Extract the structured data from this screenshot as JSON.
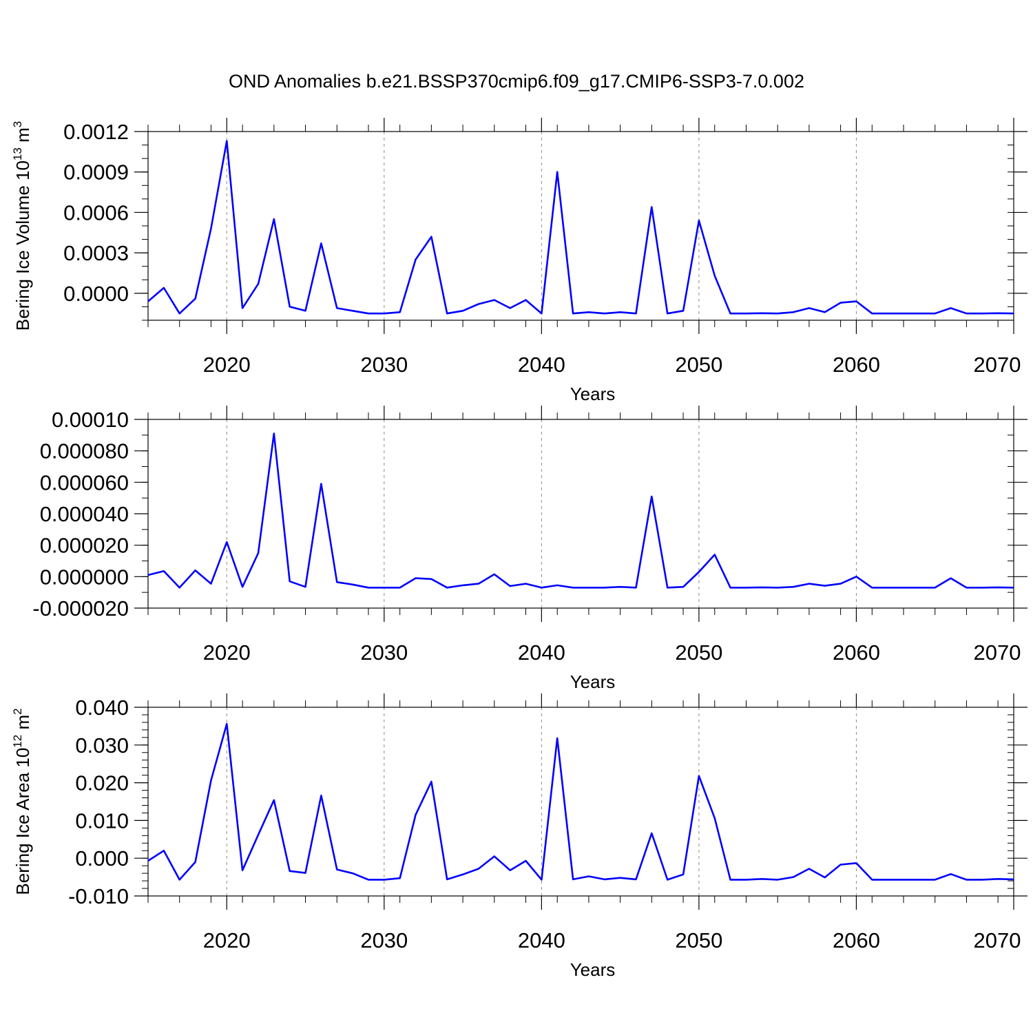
{
  "title": "OND Anomalies b.e21.BSSP370cmip6.f09_g17.CMIP6-SSP3-7.0.002",
  "colors": {
    "line": "#0000ff",
    "axis": "#000000",
    "grid": "#888888"
  },
  "chart_data": [
    {
      "type": "line",
      "xlabel": "Years",
      "ylabel": "Bering Ice Volume 10",
      "ylabel_sup": "13",
      "ylabel_unit": " m",
      "ylabel_unit_sup": "3",
      "xlim": [
        2015,
        2070
      ],
      "ylim": [
        -0.0002,
        0.0012
      ],
      "xticks": [
        2020,
        2030,
        2040,
        2050,
        2060,
        2070
      ],
      "xtick_labels": [
        "2020",
        "2030",
        "2040",
        "2050",
        "2060",
        "2070"
      ],
      "yticks": [
        0,
        0.0003,
        0.0006,
        0.0009,
        0.0012
      ],
      "ytick_labels": [
        "0.0000",
        "0.0003",
        "0.0006",
        "0.0009",
        "0.0012"
      ],
      "grid": "vertical dashed at major x ticks",
      "series": [
        {
          "x": [
            2015,
            2016,
            2017,
            2018,
            2019,
            2020,
            2021,
            2022,
            2023,
            2024,
            2025,
            2026,
            2027,
            2028,
            2029,
            2030,
            2031,
            2032,
            2033,
            2034,
            2035,
            2036,
            2037,
            2038,
            2039,
            2040,
            2041,
            2042,
            2043,
            2044,
            2045,
            2046,
            2047,
            2048,
            2049,
            2050,
            2051,
            2052,
            2053,
            2054,
            2055,
            2056,
            2057,
            2058,
            2059,
            2060,
            2061,
            2062,
            2063,
            2064,
            2065,
            2066,
            2067,
            2068,
            2069,
            2070
          ],
          "values": [
            -6e-05,
            4e-05,
            -0.00015,
            -4e-05,
            0.00048,
            0.00113,
            -0.00011,
            7e-05,
            0.00055,
            -0.0001,
            -0.00013,
            0.00037,
            -0.00011,
            -0.00013,
            -0.00015,
            -0.00015,
            -0.00014,
            0.00025,
            0.00042,
            -0.00015,
            -0.00013,
            -8e-05,
            -5e-05,
            -0.00011,
            -5e-05,
            -0.00015,
            0.0009,
            -0.00015,
            -0.00014,
            -0.00015,
            -0.00014,
            -0.00015,
            0.00064,
            -0.00015,
            -0.00013,
            0.00054,
            0.00013,
            -0.00015,
            -0.00015,
            -0.000148,
            -0.00015,
            -0.00014,
            -0.00011,
            -0.00014,
            -7e-05,
            -6e-05,
            -0.00015,
            -0.00015,
            -0.00015,
            -0.00015,
            -0.00015,
            -0.00011,
            -0.00015,
            -0.00015,
            -0.000148,
            -0.00015
          ]
        }
      ]
    },
    {
      "type": "line",
      "xlabel": "Years",
      "ylabel": "",
      "xlim": [
        2015,
        2070
      ],
      "ylim": [
        -2e-05,
        0.0001
      ],
      "xticks": [
        2020,
        2030,
        2040,
        2050,
        2060,
        2070
      ],
      "xtick_labels": [
        "2020",
        "2030",
        "2040",
        "2050",
        "2060",
        "2070"
      ],
      "yticks": [
        -2e-05,
        0,
        2e-05,
        4e-05,
        6e-05,
        8e-05,
        0.0001
      ],
      "ytick_labels": [
        "-0.000020",
        "0.000000",
        "0.000020",
        "0.000040",
        "0.000060",
        "0.000080",
        "0.00010"
      ],
      "grid": "vertical dashed at major x ticks",
      "series": [
        {
          "x": [
            2015,
            2016,
            2017,
            2018,
            2019,
            2020,
            2021,
            2022,
            2023,
            2024,
            2025,
            2026,
            2027,
            2028,
            2029,
            2030,
            2031,
            2032,
            2033,
            2034,
            2035,
            2036,
            2037,
            2038,
            2039,
            2040,
            2041,
            2042,
            2043,
            2044,
            2045,
            2046,
            2047,
            2048,
            2049,
            2050,
            2051,
            2052,
            2053,
            2054,
            2055,
            2056,
            2057,
            2058,
            2059,
            2060,
            2061,
            2062,
            2063,
            2064,
            2065,
            2066,
            2067,
            2068,
            2069,
            2070
          ],
          "values": [
            1e-06,
            3.5e-06,
            -7e-06,
            4e-06,
            -4.5e-06,
            2.2e-05,
            -6.5e-06,
            1.5e-05,
            9.1e-05,
            -3e-06,
            -6.5e-06,
            5.9e-05,
            -3.5e-06,
            -5e-06,
            -7e-06,
            -7e-06,
            -7e-06,
            -1e-06,
            -1.5e-06,
            -7e-06,
            -5.5e-06,
            -4.5e-06,
            1.5e-06,
            -6e-06,
            -4.5e-06,
            -7e-06,
            -5.5e-06,
            -7e-06,
            -7e-06,
            -7e-06,
            -6.5e-06,
            -7e-06,
            5.1e-05,
            -7e-06,
            -6.5e-06,
            3e-06,
            1.4e-05,
            -7e-06,
            -7e-06,
            -6.8e-06,
            -7e-06,
            -6.5e-06,
            -4.5e-06,
            -5.8e-06,
            -4.5e-06,
            0,
            -7e-06,
            -7e-06,
            -7e-06,
            -7e-06,
            -7e-06,
            -1e-06,
            -7e-06,
            -7e-06,
            -6.8e-06,
            -7e-06
          ]
        }
      ]
    },
    {
      "type": "line",
      "xlabel": "Years",
      "ylabel": "Bering Ice Area 10",
      "ylabel_sup": "12",
      "ylabel_unit": " m",
      "ylabel_unit_sup": "2",
      "xlim": [
        2015,
        2070
      ],
      "ylim": [
        -0.01,
        0.04
      ],
      "xticks": [
        2020,
        2030,
        2040,
        2050,
        2060,
        2070
      ],
      "xtick_labels": [
        "2020",
        "2030",
        "2040",
        "2050",
        "2060",
        "2070"
      ],
      "yticks": [
        -0.01,
        0,
        0.01,
        0.02,
        0.03,
        0.04
      ],
      "ytick_labels": [
        "-0.010",
        "0.000",
        "0.010",
        "0.020",
        "0.030",
        "0.040"
      ],
      "grid": "vertical dashed at major x ticks",
      "series": [
        {
          "x": [
            2015,
            2016,
            2017,
            2018,
            2019,
            2020,
            2021,
            2022,
            2023,
            2024,
            2025,
            2026,
            2027,
            2028,
            2029,
            2030,
            2031,
            2032,
            2033,
            2034,
            2035,
            2036,
            2037,
            2038,
            2039,
            2040,
            2041,
            2042,
            2043,
            2044,
            2045,
            2046,
            2047,
            2048,
            2049,
            2050,
            2051,
            2052,
            2053,
            2054,
            2055,
            2056,
            2057,
            2058,
            2059,
            2060,
            2061,
            2062,
            2063,
            2064,
            2065,
            2066,
            2067,
            2068,
            2069,
            2070
          ],
          "values": [
            -0.0007,
            0.002,
            -0.0057,
            -0.001,
            0.0206,
            0.0356,
            -0.0032,
            0.0062,
            0.0154,
            -0.0034,
            -0.0039,
            0.0166,
            -0.003,
            -0.004,
            -0.0057,
            -0.0057,
            -0.0053,
            0.0115,
            0.0203,
            -0.0056,
            -0.0043,
            -0.0028,
            0.0005,
            -0.0032,
            -0.0007,
            -0.0057,
            0.0318,
            -0.0056,
            -0.0048,
            -0.0056,
            -0.0052,
            -0.0056,
            0.0066,
            -0.0057,
            -0.0043,
            0.0218,
            0.0106,
            -0.0057,
            -0.0057,
            -0.0055,
            -0.0057,
            -0.005,
            -0.0028,
            -0.0051,
            -0.0017,
            -0.0013,
            -0.0057,
            -0.0057,
            -0.0057,
            -0.0057,
            -0.0057,
            -0.0042,
            -0.0057,
            -0.0057,
            -0.0055,
            -0.0056
          ]
        }
      ]
    }
  ]
}
